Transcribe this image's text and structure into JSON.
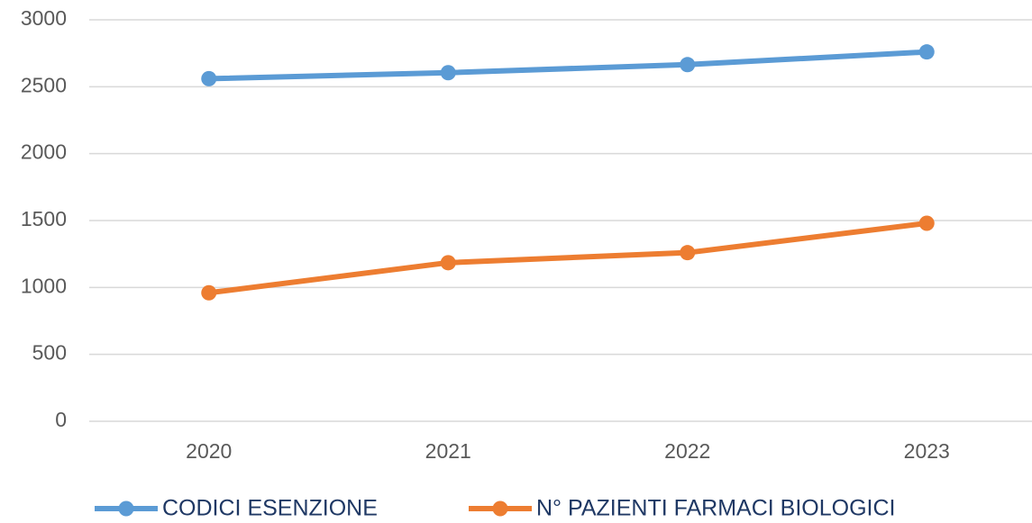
{
  "chart_data": {
    "type": "line",
    "categories": [
      "2020",
      "2021",
      "2022",
      "2023"
    ],
    "series": [
      {
        "name": "CODICI ESENZIONE",
        "color": "#5b9bd5",
        "values": [
          2560,
          2605,
          2665,
          2760
        ]
      },
      {
        "name": "N° PAZIENTI FARMACI BIOLOGICI",
        "color": "#ed7d31",
        "values": [
          960,
          1185,
          1260,
          1480
        ]
      }
    ],
    "ylim": [
      0,
      3000
    ],
    "yticks": [
      0,
      500,
      1000,
      1500,
      2000,
      2500,
      3000
    ],
    "grid": true,
    "legend": "bottom"
  }
}
